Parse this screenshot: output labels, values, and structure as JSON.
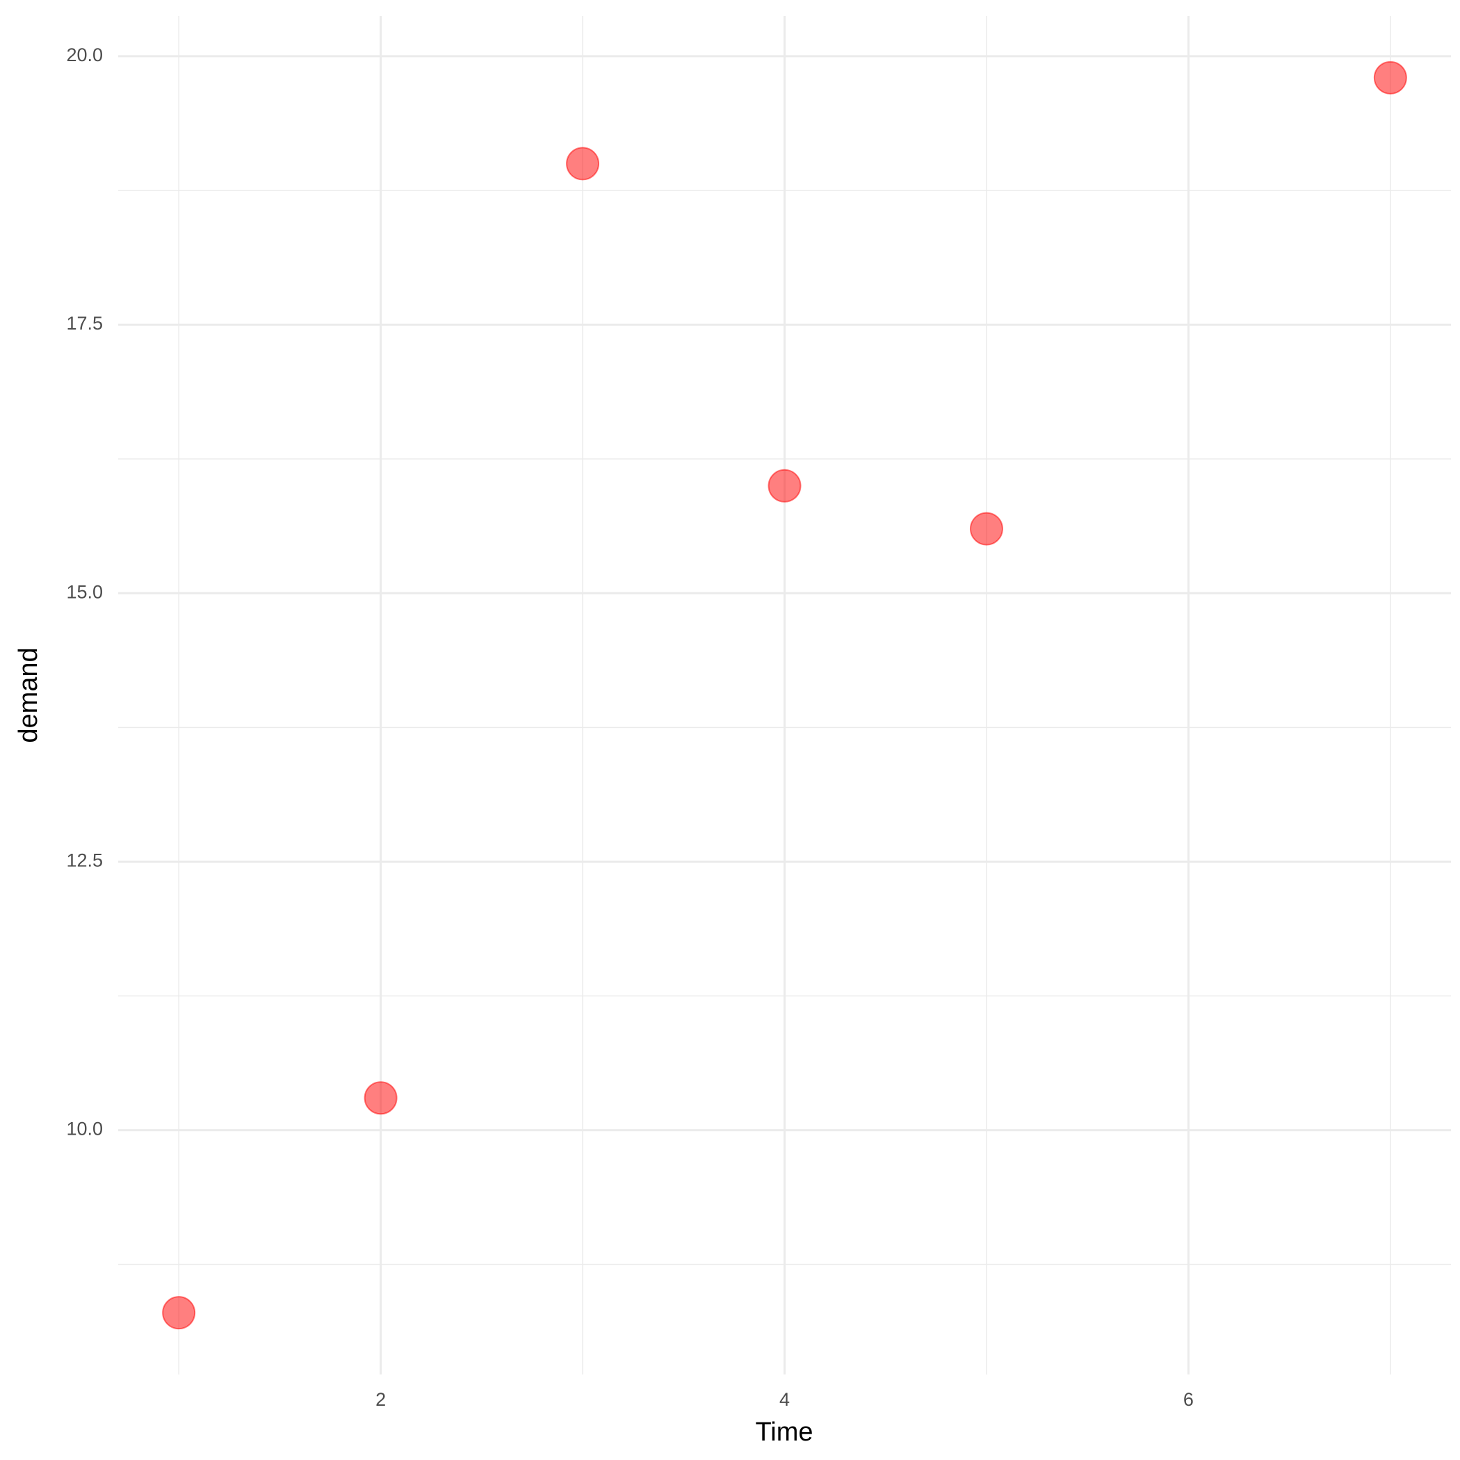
{
  "chart_data": {
    "type": "scatter",
    "x_label": "Time",
    "y_label": "demand",
    "x": [
      1,
      2,
      3,
      4,
      5,
      7
    ],
    "values": [
      8.3,
      10.3,
      19.0,
      16.0,
      15.6,
      19.8
    ],
    "color": "#ff0000",
    "xlim": [
      0.7,
      7.3
    ],
    "ylim": [
      7.725,
      20.375
    ],
    "xticks": [
      2,
      4,
      6
    ],
    "yticks": [
      {
        "value": 10,
        "label": "10.0"
      },
      12.5,
      {
        "value": 15,
        "label": "15.0"
      },
      17.5,
      {
        "value": 20,
        "label": "20.0"
      }
    ],
    "x_minor_ticks": [
      1,
      3,
      5,
      7
    ],
    "y_minor_ticks": [
      8.75,
      11.25,
      13.75,
      16.25,
      18.75
    ],
    "grid": true
  }
}
